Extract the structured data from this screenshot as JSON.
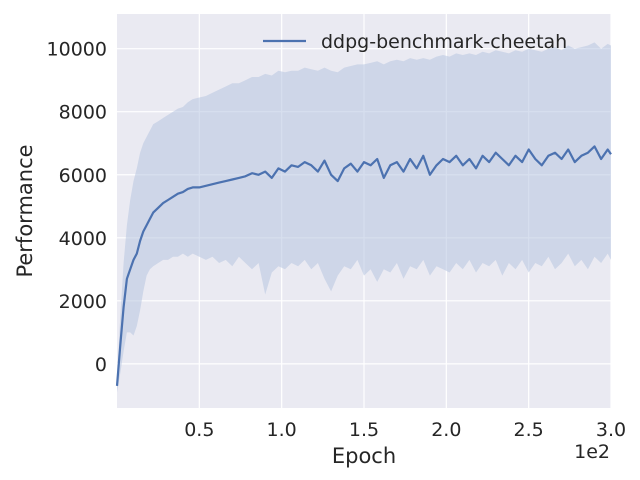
{
  "chart_data": {
    "type": "line",
    "title": "",
    "xlabel": "Epoch",
    "ylabel": "Performance",
    "x_offset_text": "1e2",
    "xlim": [
      0,
      300
    ],
    "ylim": [
      -1400,
      11100
    ],
    "x_ticks": [
      50,
      100,
      150,
      200,
      250,
      300
    ],
    "x_tick_labels": [
      "0.5",
      "1.0",
      "1.5",
      "2.0",
      "2.5",
      "3.0"
    ],
    "y_ticks": [
      0,
      2000,
      4000,
      6000,
      8000,
      10000
    ],
    "y_tick_labels": [
      "0",
      "2000",
      "4000",
      "6000",
      "8000",
      "10000"
    ],
    "grid": true,
    "legend_position": "top-right",
    "colors": {
      "line": "#4c72b0",
      "band": "#b7c4e0",
      "background": "#eaeaf2",
      "grid": "#ffffff"
    },
    "series": [
      {
        "name": "ddpg-benchmark-cheetah",
        "x": [
          0,
          2,
          4,
          6,
          8,
          10,
          12,
          14,
          16,
          18,
          20,
          22,
          25,
          28,
          31,
          34,
          37,
          40,
          43,
          46,
          50,
          54,
          58,
          62,
          66,
          70,
          74,
          78,
          82,
          86,
          90,
          94,
          98,
          102,
          106,
          110,
          114,
          118,
          122,
          126,
          130,
          134,
          138,
          142,
          146,
          150,
          154,
          158,
          162,
          166,
          170,
          174,
          178,
          182,
          186,
          190,
          194,
          198,
          202,
          206,
          210,
          214,
          218,
          222,
          226,
          230,
          234,
          238,
          242,
          246,
          250,
          254,
          258,
          262,
          266,
          270,
          274,
          278,
          282,
          286,
          290,
          294,
          298,
          300
        ],
        "mean": [
          -700,
          600,
          1800,
          2700,
          3000,
          3300,
          3500,
          3900,
          4200,
          4400,
          4600,
          4800,
          4950,
          5100,
          5200,
          5300,
          5400,
          5450,
          5550,
          5600,
          5600,
          5650,
          5700,
          5750,
          5800,
          5850,
          5900,
          5950,
          6050,
          6000,
          6100,
          5900,
          6200,
          6100,
          6300,
          6250,
          6400,
          6300,
          6100,
          6450,
          6000,
          5800,
          6200,
          6350,
          6100,
          6400,
          6300,
          6500,
          5900,
          6300,
          6400,
          6100,
          6500,
          6200,
          6600,
          6000,
          6300,
          6500,
          6400,
          6600,
          6300,
          6500,
          6200,
          6600,
          6400,
          6700,
          6500,
          6300,
          6600,
          6400,
          6800,
          6500,
          6300,
          6600,
          6700,
          6500,
          6800,
          6400,
          6600,
          6700,
          6900,
          6500,
          6800,
          6650
        ],
        "upper": [
          -500,
          1500,
          3200,
          4400,
          5200,
          5800,
          6200,
          6700,
          7000,
          7200,
          7400,
          7600,
          7700,
          7800,
          7900,
          8000,
          8100,
          8150,
          8300,
          8400,
          8450,
          8500,
          8600,
          8700,
          8800,
          8900,
          8900,
          9000,
          9100,
          9100,
          9200,
          9150,
          9300,
          9250,
          9300,
          9300,
          9400,
          9350,
          9300,
          9400,
          9300,
          9250,
          9400,
          9450,
          9500,
          9500,
          9550,
          9600,
          9500,
          9600,
          9650,
          9600,
          9700,
          9650,
          9700,
          9650,
          9750,
          9800,
          9750,
          9850,
          9800,
          9850,
          9800,
          9900,
          9850,
          9950,
          9900,
          9850,
          9950,
          9900,
          10000,
          9950,
          9900,
          10000,
          10050,
          9950,
          10100,
          10000,
          10050,
          10100,
          10200,
          10000,
          10150,
          10100
        ],
        "lower": [
          -900,
          -300,
          400,
          1000,
          1000,
          900,
          1200,
          1700,
          2300,
          2800,
          3000,
          3100,
          3200,
          3300,
          3300,
          3400,
          3400,
          3500,
          3400,
          3500,
          3400,
          3300,
          3400,
          3200,
          3300,
          3100,
          3400,
          3200,
          3000,
          3200,
          2200,
          2900,
          3100,
          3000,
          3200,
          3100,
          3300,
          3000,
          3200,
          2700,
          2300,
          2800,
          3100,
          3000,
          3300,
          2800,
          3000,
          2600,
          3000,
          2900,
          3200,
          2700,
          3100,
          3000,
          3300,
          2800,
          3100,
          3000,
          2900,
          3200,
          3000,
          3300,
          2900,
          3200,
          3100,
          3300,
          2800,
          3200,
          3000,
          3300,
          2900,
          3200,
          3100,
          3400,
          3000,
          3200,
          3500,
          3100,
          3300,
          3000,
          3400,
          3200,
          3500,
          3300
        ]
      }
    ]
  }
}
